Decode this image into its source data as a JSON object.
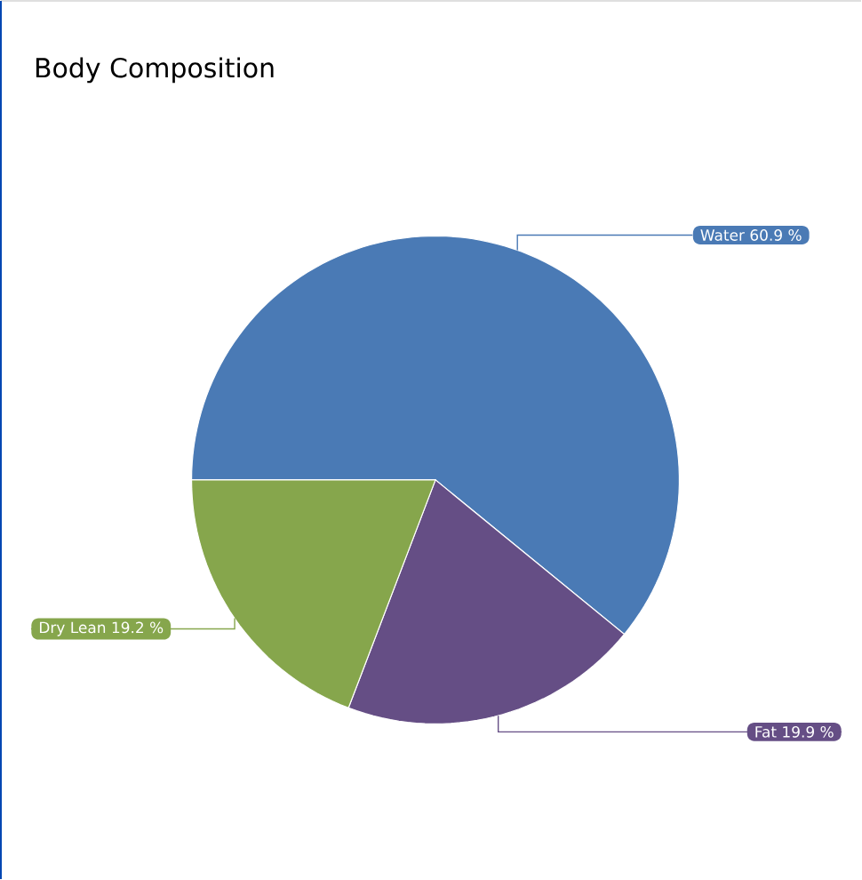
{
  "chart_data": {
    "type": "pie",
    "title": "Body Composition",
    "categories": [
      "Water",
      "Fat",
      "Dry Lean"
    ],
    "values": [
      60.9,
      19.9,
      19.2
    ],
    "colors": [
      "#4a7ab5",
      "#654e85",
      "#86a64c"
    ],
    "data_labels": true,
    "value_labels": [
      "60.9 %",
      "19.9 %",
      "19.2 %"
    ]
  }
}
